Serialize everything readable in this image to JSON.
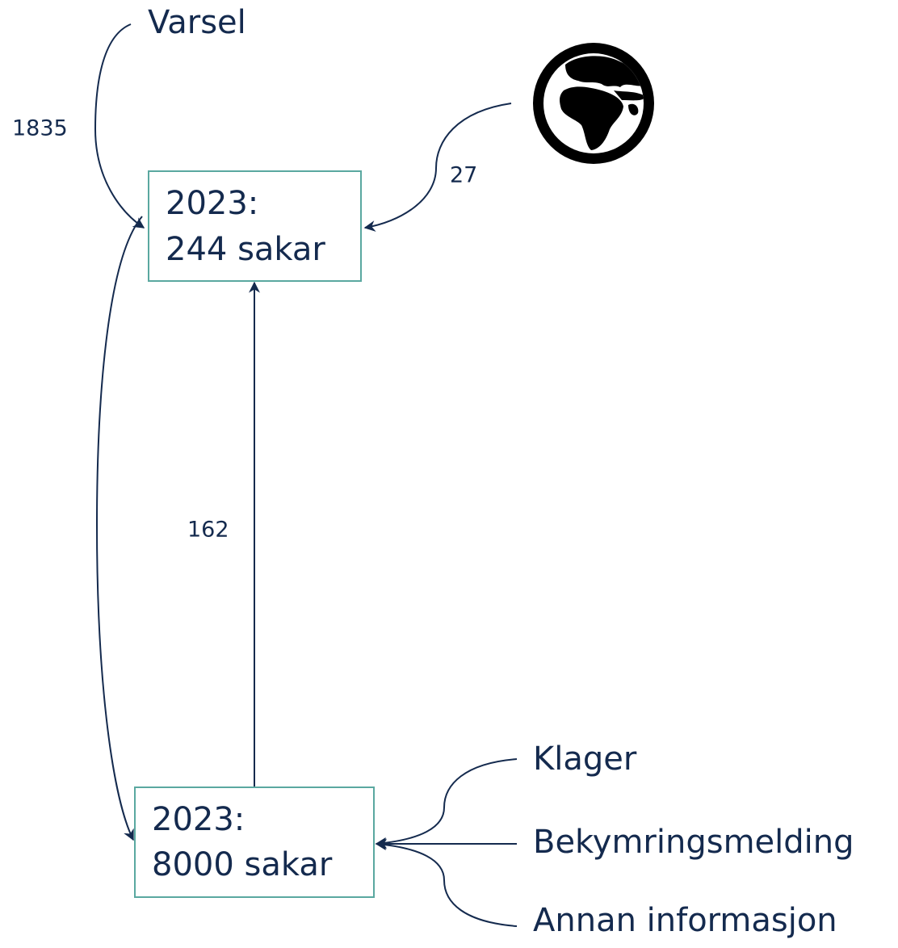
{
  "boxes": [
    {
      "lines": [
        "2023:",
        "244 sakar"
      ]
    },
    {
      "lines": [
        "2023:",
        "8000 sakar"
      ]
    }
  ],
  "sources": [
    "Varsel",
    "Klager",
    "Bekymringsmelding",
    "Annan informasjon"
  ],
  "edge_labels": [
    "1835",
    "27",
    "162"
  ]
}
